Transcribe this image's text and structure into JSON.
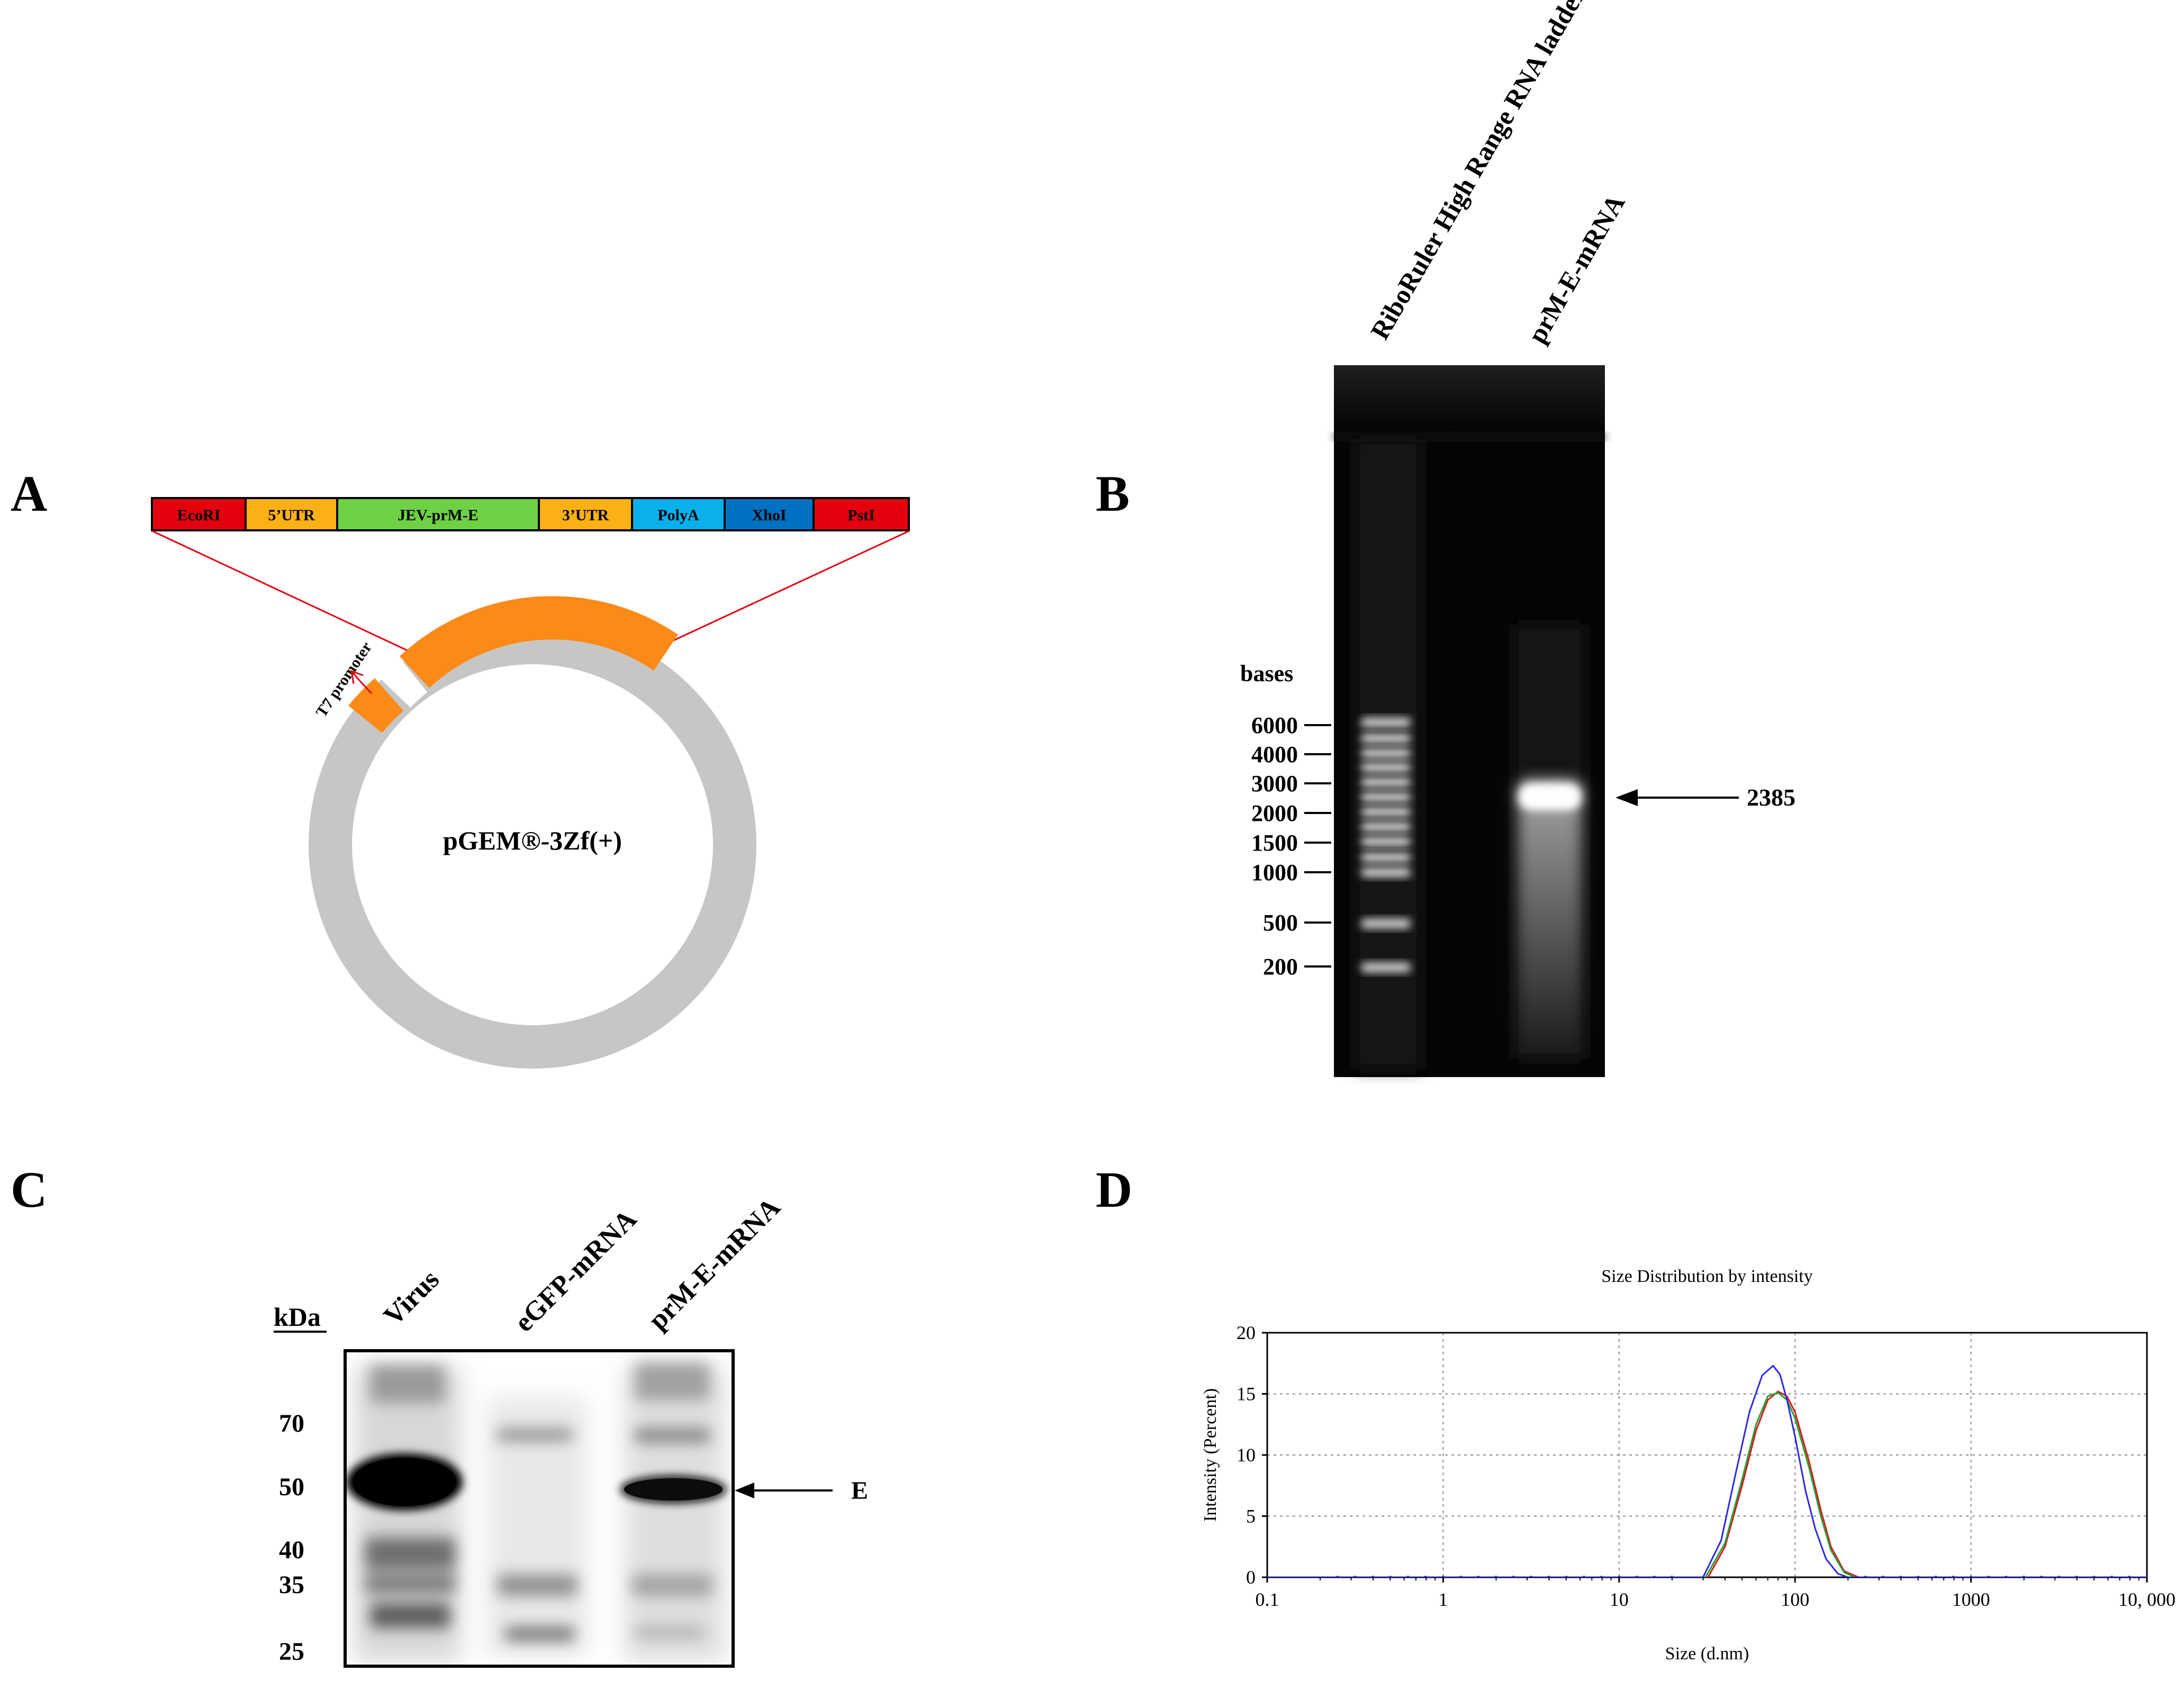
{
  "panels": {
    "a": {
      "letter": "A",
      "segments": [
        {
          "label": "EcoRI",
          "color": "#e3000f"
        },
        {
          "label": "5’UTR",
          "color": "#fbb015"
        },
        {
          "label": "JEV-prM-E",
          "color": "#6ed144"
        },
        {
          "label": "3’UTR",
          "color": "#fbb015"
        },
        {
          "label": "PolyA",
          "color": "#0ab0ec"
        },
        {
          "label": "XhoI",
          "color": "#0070c0"
        },
        {
          "label": "PstI",
          "color": "#e3000f"
        }
      ],
      "plasmid_label": "pGEM®-3Zf(+)",
      "promoter_label": "T7 promoter",
      "colors": {
        "backbone": "#c6c6c6",
        "insert": "#fb8a17",
        "guide": "#e3000f"
      }
    },
    "b": {
      "letter": "B",
      "lane_labels": [
        "RiboRuler High Range RNA ladder",
        "prM-E-mRNA"
      ],
      "ladder_unit": "bases",
      "ladder": [
        "6000",
        "4000",
        "3000",
        "2000",
        "1500",
        "1000",
        "500",
        "200"
      ],
      "band_label": "2385"
    },
    "c": {
      "letter": "C",
      "lane_labels": [
        "Virus",
        "eGFP-mRNA",
        "prM-E-mRNA"
      ],
      "marker_unit": "kDa",
      "markers": [
        "70",
        "50",
        "40",
        "35",
        "25"
      ],
      "band_label": "E"
    },
    "d": {
      "letter": "D",
      "chart_data": {
        "type": "line",
        "title": "Size Distribution by intensity",
        "xlabel": "Size (d.nm)",
        "ylabel": "Intensity (Percent)",
        "xscale": "log",
        "xlim": [
          0.1,
          10000
        ],
        "ylim": [
          0,
          20
        ],
        "xticks": [
          "0.1",
          "1",
          "10",
          "100",
          "1000",
          "10, 000"
        ],
        "yticks": [
          "0",
          "5",
          "10",
          "15",
          "20"
        ],
        "grid": true,
        "series": [
          {
            "color": "#e0141e",
            "x": [
              0.1,
              32,
              40,
              50,
              60,
              70,
              80,
              90,
              100,
              120,
              140,
              160,
              190,
              230,
              10000
            ],
            "y": [
              0,
              0,
              2.5,
              7.5,
              12,
              14.5,
              15.2,
              14.8,
              13.5,
              9.5,
              5.5,
              2.5,
              0.5,
              0,
              0
            ]
          },
          {
            "color": "#1ea531",
            "x": [
              0.1,
              31,
              40,
              50,
              60,
              70,
              80,
              90,
              100,
              120,
              140,
              160,
              190,
              220,
              10000
            ],
            "y": [
              0,
              0,
              2.8,
              8,
              12.5,
              14.8,
              15.1,
              14.5,
              13,
              9,
              5,
              2.2,
              0.4,
              0,
              0
            ]
          },
          {
            "color": "#2a2ae0",
            "x": [
              0.1,
              30,
              38,
              46,
              55,
              65,
              75,
              82,
              90,
              100,
              115,
              130,
              150,
              175,
              200,
              10000
            ],
            "y": [
              0,
              0,
              3,
              8.5,
              13.5,
              16.5,
              17.3,
              16.6,
              14.5,
              11.5,
              7,
              4,
              1.5,
              0.3,
              0,
              0
            ]
          }
        ]
      }
    }
  }
}
